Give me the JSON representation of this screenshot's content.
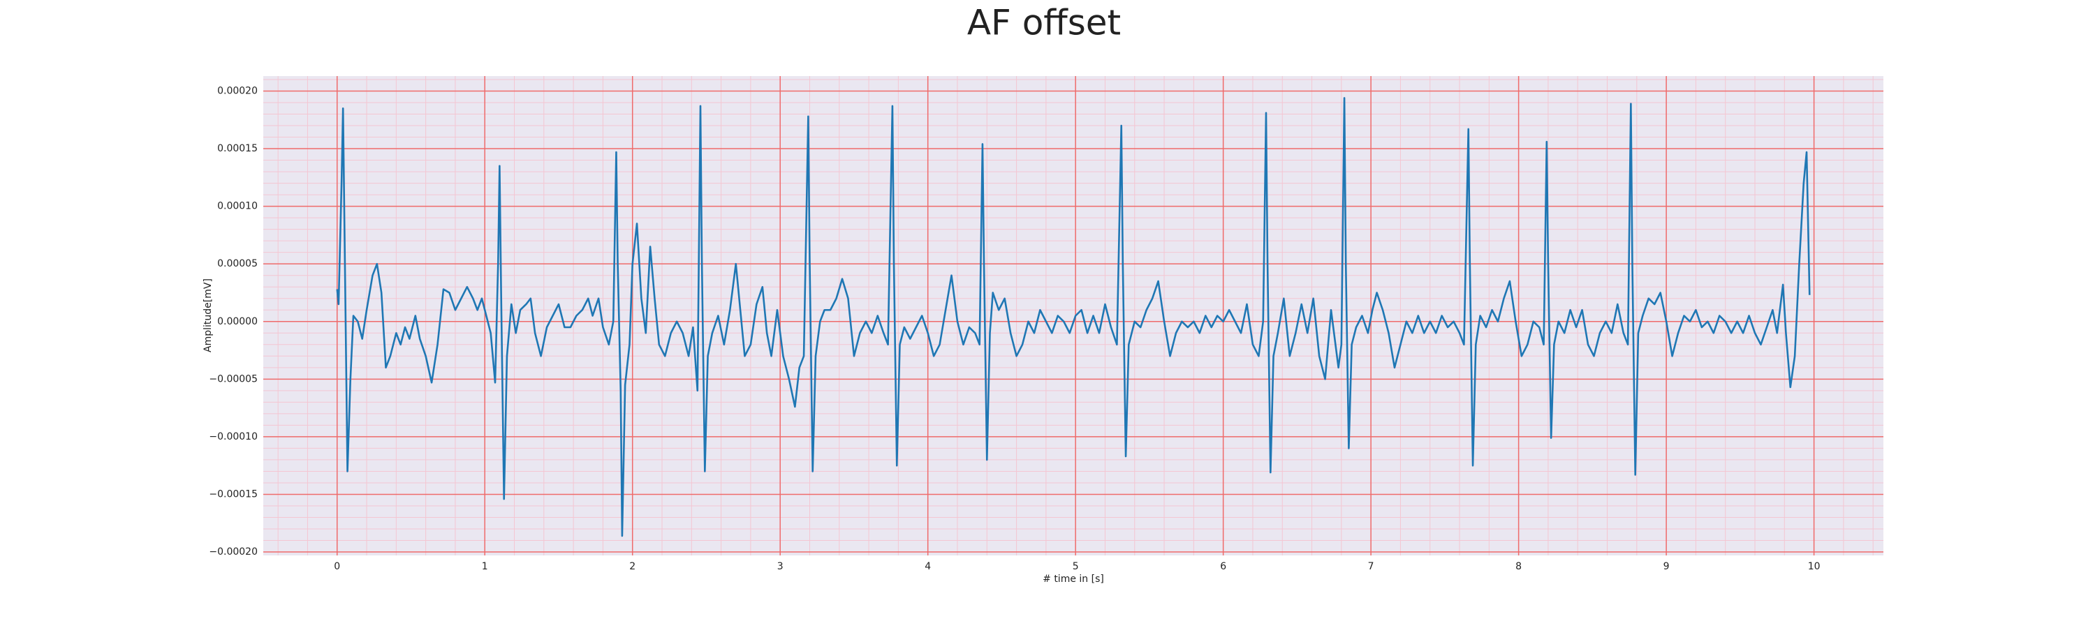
{
  "chart_data": {
    "type": "line",
    "title": "AF offset",
    "x_label": "# time in [s]",
    "y_label": "Amplitude[mV]",
    "color": "#1f77b4",
    "grid": true,
    "minor_grid": true,
    "xlim": [
      -0.5,
      10.47
    ],
    "ylim": [
      -0.000203,
      0.000213
    ],
    "xticks": [
      0,
      1,
      2,
      3,
      4,
      5,
      6,
      7,
      8,
      9,
      10
    ],
    "yticks": [
      {
        "value": -0.0002,
        "label": "−0.00020"
      },
      {
        "value": -0.00015,
        "label": "−0.00015"
      },
      {
        "value": -0.0001,
        "label": "−0.00010"
      },
      {
        "value": -5e-05,
        "label": "−0.00005"
      },
      {
        "value": 0,
        "label": "0.00000"
      },
      {
        "value": 5e-05,
        "label": "0.00005"
      },
      {
        "value": 0.0001,
        "label": "0.00010"
      },
      {
        "value": 0.00015,
        "label": "0.00015"
      },
      {
        "value": 0.0002,
        "label": "0.00020"
      }
    ],
    "x": [
      0.0,
      0.01,
      0.03,
      0.04,
      0.05,
      0.07,
      0.09,
      0.11,
      0.14,
      0.17,
      0.2,
      0.24,
      0.27,
      0.3,
      0.33,
      0.36,
      0.4,
      0.43,
      0.46,
      0.49,
      0.53,
      0.56,
      0.6,
      0.64,
      0.68,
      0.72,
      0.76,
      0.8,
      0.84,
      0.88,
      0.92,
      0.95,
      0.98,
      1.01,
      1.04,
      1.07,
      1.09,
      1.1,
      1.11,
      1.13,
      1.15,
      1.18,
      1.21,
      1.24,
      1.28,
      1.31,
      1.34,
      1.38,
      1.42,
      1.46,
      1.5,
      1.54,
      1.58,
      1.62,
      1.66,
      1.7,
      1.73,
      1.77,
      1.8,
      1.84,
      1.87,
      1.89,
      1.9,
      1.92,
      1.93,
      1.95,
      1.98,
      2.0,
      2.03,
      2.06,
      2.09,
      2.12,
      2.15,
      2.18,
      2.22,
      2.26,
      2.3,
      2.34,
      2.38,
      2.41,
      2.44,
      2.46,
      2.47,
      2.49,
      2.51,
      2.54,
      2.58,
      2.62,
      2.66,
      2.7,
      2.73,
      2.76,
      2.8,
      2.84,
      2.88,
      2.91,
      2.94,
      2.98,
      3.02,
      3.06,
      3.1,
      3.13,
      3.16,
      3.19,
      3.2,
      3.22,
      3.24,
      3.27,
      3.3,
      3.34,
      3.38,
      3.42,
      3.46,
      3.5,
      3.54,
      3.58,
      3.62,
      3.66,
      3.7,
      3.73,
      3.76,
      3.77,
      3.79,
      3.81,
      3.84,
      3.88,
      3.92,
      3.96,
      4.0,
      4.04,
      4.08,
      4.12,
      4.16,
      4.2,
      4.24,
      4.28,
      4.32,
      4.35,
      4.37,
      4.38,
      4.4,
      4.42,
      4.44,
      4.48,
      4.52,
      4.56,
      4.6,
      4.64,
      4.68,
      4.72,
      4.76,
      4.8,
      4.84,
      4.88,
      4.92,
      4.96,
      5.0,
      5.04,
      5.08,
      5.12,
      5.16,
      5.2,
      5.24,
      5.28,
      5.31,
      5.32,
      5.34,
      5.36,
      5.4,
      5.44,
      5.48,
      5.52,
      5.56,
      5.6,
      5.64,
      5.68,
      5.72,
      5.76,
      5.8,
      5.84,
      5.88,
      5.92,
      5.96,
      6.0,
      6.04,
      6.08,
      6.12,
      6.16,
      6.2,
      6.24,
      6.27,
      6.29,
      6.3,
      6.32,
      6.34,
      6.37,
      6.41,
      6.45,
      6.49,
      6.53,
      6.57,
      6.61,
      6.65,
      6.69,
      6.73,
      6.76,
      6.78,
      6.8,
      6.82,
      6.83,
      6.85,
      6.87,
      6.9,
      6.94,
      6.98,
      7.01,
      7.04,
      7.08,
      7.12,
      7.16,
      7.2,
      7.24,
      7.28,
      7.32,
      7.36,
      7.4,
      7.44,
      7.48,
      7.52,
      7.56,
      7.6,
      7.63,
      7.66,
      7.67,
      7.69,
      7.71,
      7.74,
      7.78,
      7.82,
      7.86,
      7.9,
      7.94,
      7.98,
      8.02,
      8.06,
      8.1,
      8.14,
      8.17,
      8.19,
      8.2,
      8.22,
      8.24,
      8.27,
      8.31,
      8.35,
      8.39,
      8.43,
      8.47,
      8.51,
      8.55,
      8.59,
      8.63,
      8.67,
      8.71,
      8.74,
      8.76,
      8.77,
      8.79,
      8.81,
      8.84,
      8.88,
      8.92,
      8.96,
      9.0,
      9.04,
      9.08,
      9.12,
      9.16,
      9.2,
      9.24,
      9.28,
      9.32,
      9.36,
      9.4,
      9.44,
      9.48,
      9.52,
      9.56,
      9.6,
      9.64,
      9.68,
      9.72,
      9.75,
      9.79,
      9.81,
      9.84,
      9.87,
      9.9,
      9.93,
      9.95,
      9.97
    ],
    "values": [
      2.8e-05,
      1.5e-05,
      0.00012,
      0.000185,
      8e-05,
      -0.00013,
      -5e-05,
      5e-06,
      0,
      -1.5e-05,
      1e-05,
      4e-05,
      5e-05,
      2.5e-05,
      -4e-05,
      -3e-05,
      -1e-05,
      -2e-05,
      -5e-06,
      -1.5e-05,
      5e-06,
      -1.5e-05,
      -3e-05,
      -5.3e-05,
      -2e-05,
      2.8e-05,
      2.5e-05,
      1e-05,
      2e-05,
      3e-05,
      2e-05,
      1e-05,
      2e-05,
      5e-06,
      -1e-05,
      -5.3e-05,
      5e-05,
      0.000135,
      3e-05,
      -0.000154,
      -3e-05,
      1.5e-05,
      -1e-05,
      1e-05,
      1.5e-05,
      2e-05,
      -1e-05,
      -3e-05,
      -5e-06,
      5e-06,
      1.5e-05,
      -5e-06,
      -5e-06,
      5e-06,
      1e-05,
      2e-05,
      5e-06,
      2e-05,
      -5e-06,
      -2e-05,
      0,
      0.000147,
      5e-05,
      -6e-05,
      -0.000186,
      -5.5e-05,
      -2e-05,
      5e-05,
      8.5e-05,
      2e-05,
      -1e-05,
      6.5e-05,
      2e-05,
      -2e-05,
      -3e-05,
      -1e-05,
      0,
      -1e-05,
      -3e-05,
      -5e-06,
      -6e-05,
      0.000187,
      5e-05,
      -0.00013,
      -3e-05,
      -1e-05,
      5e-06,
      -2e-05,
      1e-05,
      5e-05,
      1e-05,
      -3e-05,
      -2e-05,
      1.5e-05,
      3e-05,
      -1e-05,
      -3e-05,
      1e-05,
      -3e-05,
      -5e-05,
      -7.4e-05,
      -4e-05,
      -3e-05,
      0.000178,
      5e-05,
      -0.00013,
      -3e-05,
      0,
      1e-05,
      1e-05,
      2e-05,
      3.7e-05,
      2e-05,
      -3e-05,
      -1e-05,
      0,
      -1e-05,
      5e-06,
      -1e-05,
      -2e-05,
      0.000187,
      5e-05,
      -0.000125,
      -2e-05,
      -5e-06,
      -1.5e-05,
      -5e-06,
      5e-06,
      -1e-05,
      -3e-05,
      -2e-05,
      1e-05,
      4e-05,
      0,
      -2e-05,
      -5e-06,
      -1e-05,
      -2e-05,
      0.000154,
      5e-05,
      -0.00012,
      -1e-05,
      2.5e-05,
      1e-05,
      2e-05,
      -1e-05,
      -3e-05,
      -2e-05,
      0,
      -1e-05,
      1e-05,
      0,
      -1e-05,
      5e-06,
      0,
      -1e-05,
      5e-06,
      1e-05,
      -1e-05,
      5e-06,
      -1e-05,
      1.5e-05,
      -5e-06,
      -2e-05,
      0.00017,
      5e-05,
      -0.000117,
      -2e-05,
      0,
      -5e-06,
      1e-05,
      2e-05,
      3.5e-05,
      0,
      -3e-05,
      -1e-05,
      0,
      -5e-06,
      0,
      -1e-05,
      5e-06,
      -5e-06,
      5e-06,
      0,
      1e-05,
      0,
      -1e-05,
      1.5e-05,
      -2e-05,
      -3e-05,
      0,
      0.000181,
      5e-05,
      -0.000131,
      -3e-05,
      -1e-05,
      2e-05,
      -3e-05,
      -1e-05,
      1.5e-05,
      -1e-05,
      2e-05,
      -3e-05,
      -5e-05,
      1e-05,
      -2e-05,
      -4e-05,
      -2e-05,
      0.000194,
      5e-05,
      -0.00011,
      -2e-05,
      -5e-06,
      5e-06,
      -1e-05,
      1e-05,
      2.5e-05,
      1e-05,
      -1e-05,
      -4e-05,
      -2e-05,
      0,
      -1e-05,
      5e-06,
      -1e-05,
      0,
      -1e-05,
      5e-06,
      -5e-06,
      0,
      -1e-05,
      -2e-05,
      0.000167,
      5e-05,
      -0.000125,
      -2e-05,
      5e-06,
      -5e-06,
      1e-05,
      0,
      2e-05,
      3.5e-05,
      0,
      -3e-05,
      -2e-05,
      0,
      -5e-06,
      -2e-05,
      0.000156,
      5e-05,
      -0.000101,
      -2e-05,
      0,
      -1e-05,
      1e-05,
      -5e-06,
      1e-05,
      -2e-05,
      -3e-05,
      -1e-05,
      0,
      -1e-05,
      1.5e-05,
      -1e-05,
      -2e-05,
      0.000189,
      5e-05,
      -0.000133,
      -1e-05,
      5e-06,
      2e-05,
      1.5e-05,
      2.5e-05,
      0,
      -3e-05,
      -1e-05,
      5e-06,
      0,
      1e-05,
      -5e-06,
      0,
      -1e-05,
      5e-06,
      0,
      -1e-05,
      0,
      -1e-05,
      5e-06,
      -1e-05,
      -2e-05,
      -5e-06,
      1e-05,
      -1e-05,
      3.2e-05,
      -1e-05,
      -5.7e-05,
      -3e-05,
      5e-05,
      0.00012,
      0.000147,
      2.3e-05
    ]
  }
}
